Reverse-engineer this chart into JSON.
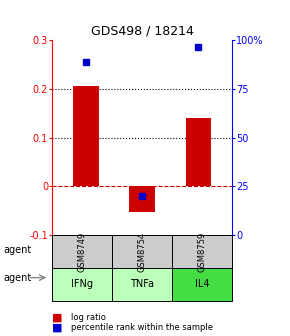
{
  "title": "GDS498 / 18214",
  "samples": [
    "GSM8749",
    "GSM8754",
    "GSM8759"
  ],
  "agents": [
    "IFNg",
    "TNFa",
    "IL4"
  ],
  "log_ratios": [
    0.207,
    -0.052,
    0.14
  ],
  "percentile_ranks": [
    0.89,
    0.2,
    0.965
  ],
  "bar_color": "#cc0000",
  "dot_color": "#0000cc",
  "agent_colors": [
    "#bbffbb",
    "#bbffbb",
    "#44dd44"
  ],
  "sample_bg": "#cccccc",
  "ylim_left": [
    -0.1,
    0.3
  ],
  "yticks_left": [
    -0.1,
    0.0,
    0.1,
    0.2,
    0.3
  ],
  "ytick_labels_left": [
    "-0.1",
    "0",
    "0.1",
    "0.2",
    "0.3"
  ],
  "yticks_right": [
    0.0,
    0.25,
    0.5,
    0.75,
    1.0
  ],
  "ytick_labels_right": [
    "0",
    "25",
    "50",
    "75",
    "100%"
  ],
  "dotted_lines": [
    0.1,
    0.2
  ],
  "zero_line": 0.0,
  "bar_width": 0.45,
  "legend_log": "log ratio",
  "legend_pct": "percentile rank within the sample",
  "agent_label": "agent"
}
